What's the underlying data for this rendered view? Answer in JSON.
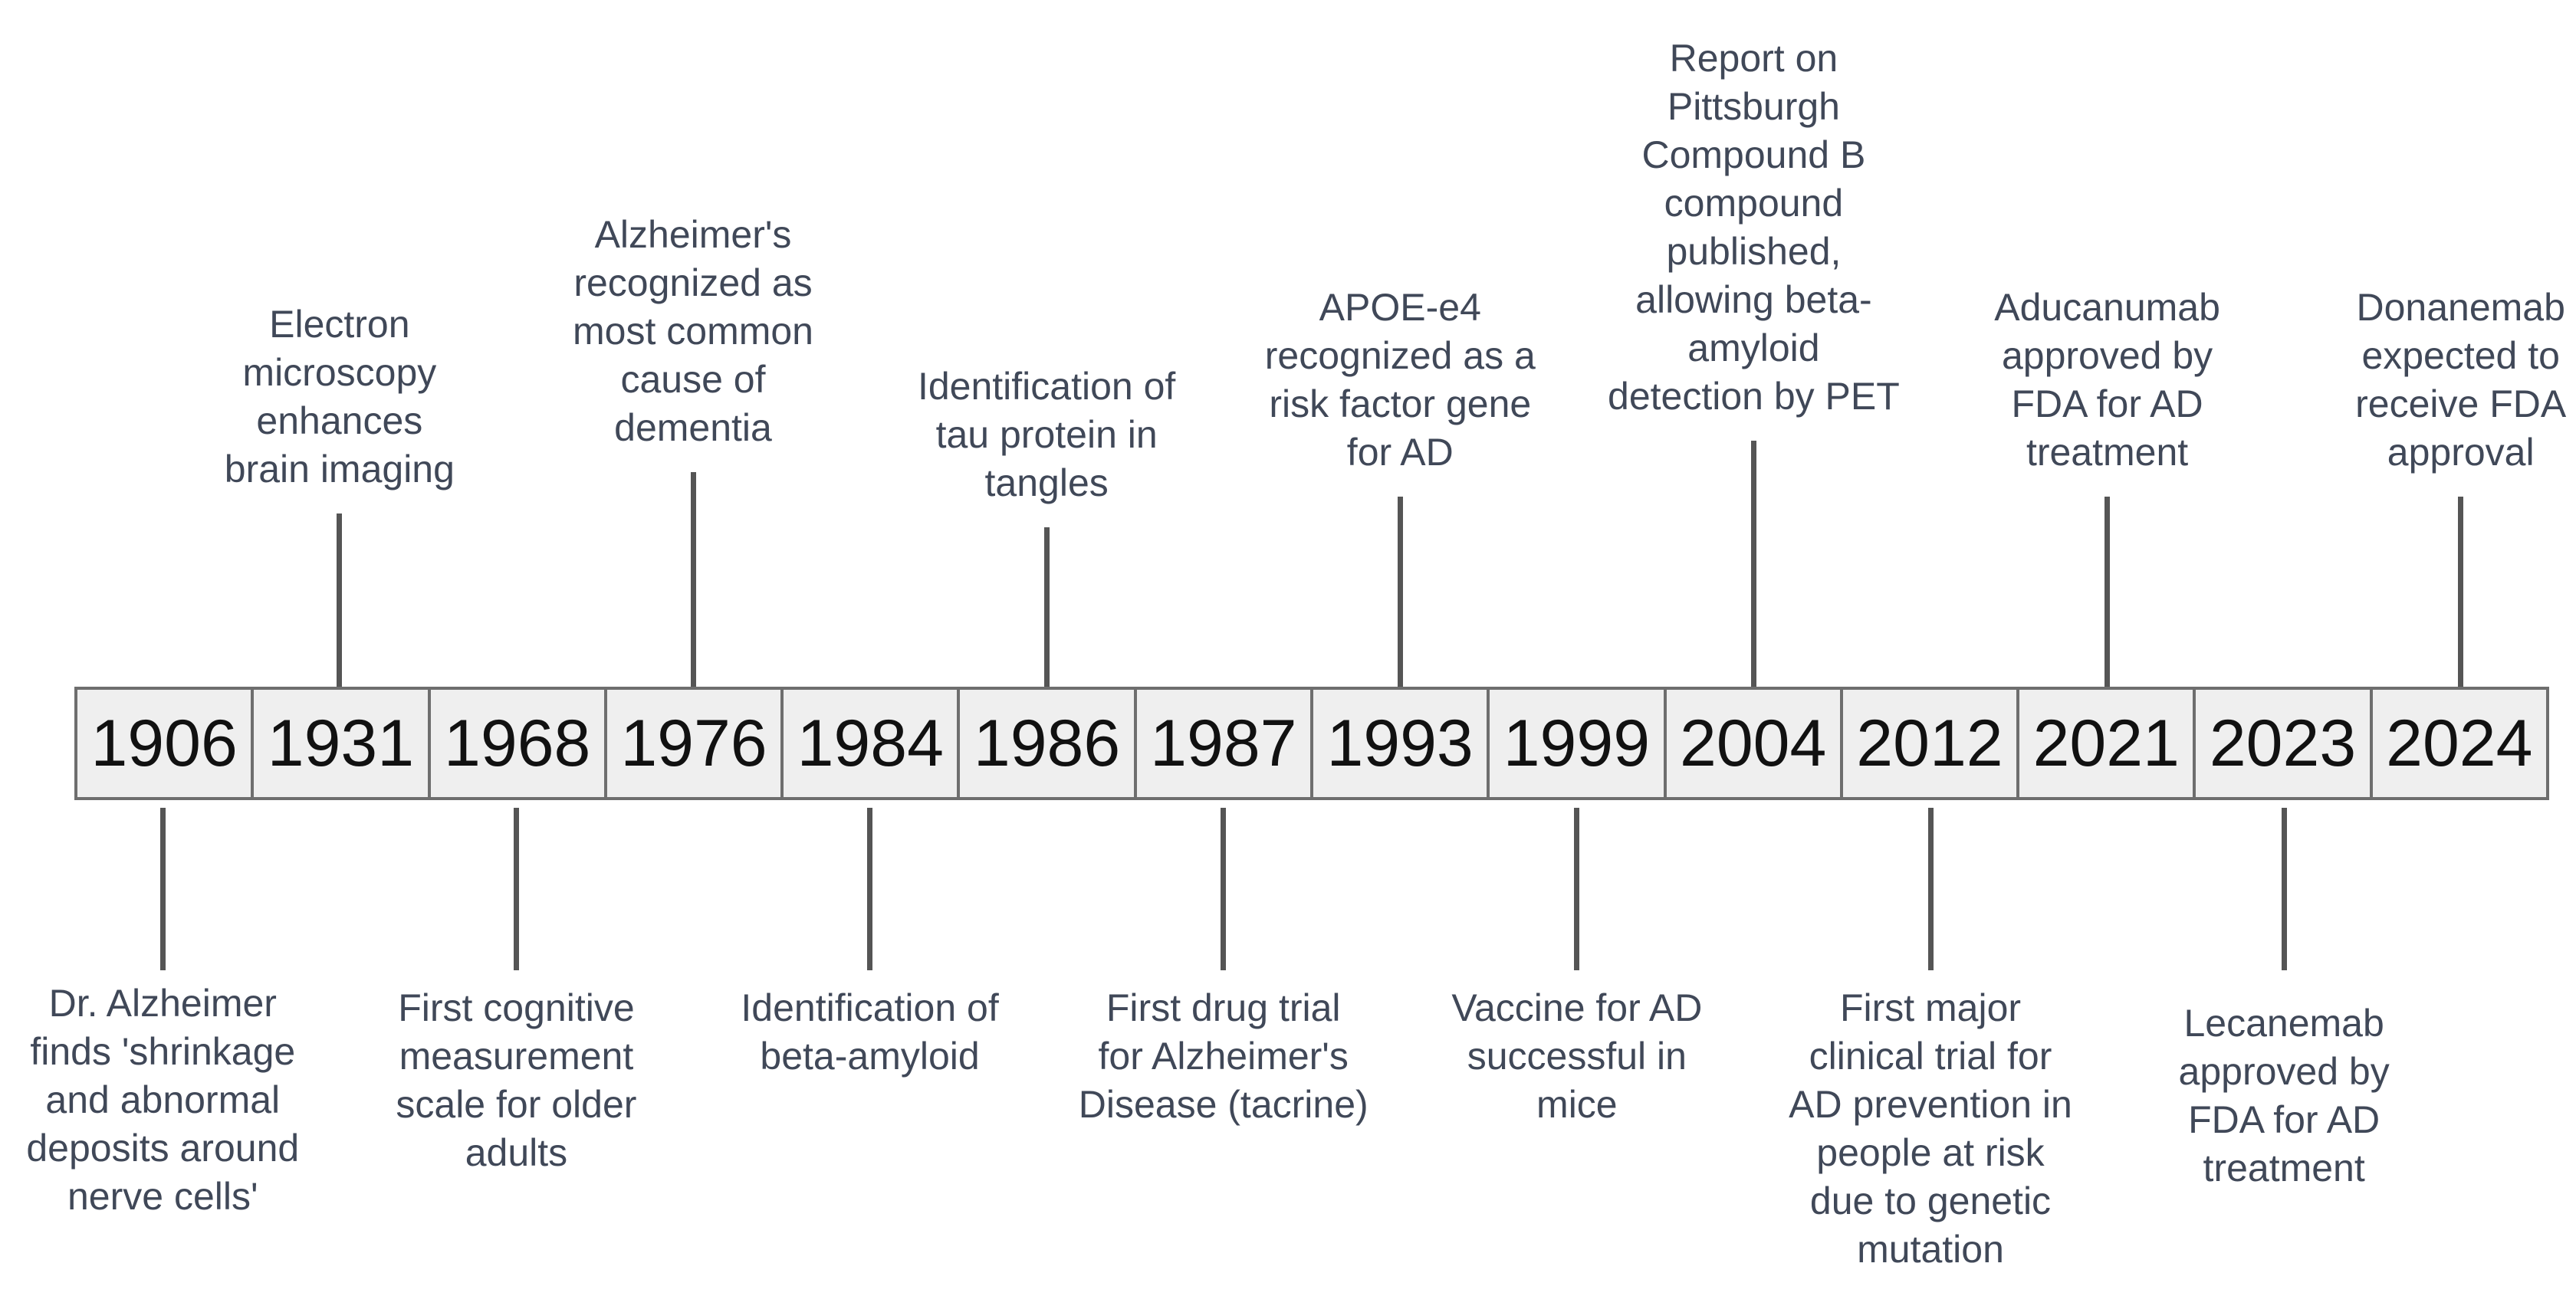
{
  "timeline": {
    "years": [
      "1906",
      "1931",
      "1968",
      "1976",
      "1984",
      "1986",
      "1987",
      "1993",
      "1999",
      "2004",
      "2012",
      "2021",
      "2023",
      "2024"
    ],
    "events_above": [
      {
        "year": "1931",
        "lines": [
          "Electron",
          "microscopy",
          "enhances",
          "brain imaging"
        ]
      },
      {
        "year": "1976",
        "lines": [
          "Alzheimer's",
          "recognized as",
          "most common",
          "cause of",
          "dementia"
        ]
      },
      {
        "year": "1986",
        "lines": [
          "Identification of",
          "tau protein in",
          "tangles"
        ]
      },
      {
        "year": "1993",
        "lines": [
          "APOE-e4",
          "recognized as a",
          "risk factor gene",
          "for AD"
        ]
      },
      {
        "year": "2004",
        "lines": [
          "Report on",
          "Pittsburgh",
          "Compound B",
          "compound",
          "published,",
          "allowing beta-",
          "amyloid",
          "detection by PET"
        ]
      },
      {
        "year": "2021",
        "lines": [
          "Aducanumab",
          "approved by",
          "FDA for AD",
          "treatment"
        ]
      },
      {
        "year": "2024",
        "lines": [
          "Donanemab",
          "expected to",
          "receive FDA",
          "approval"
        ]
      }
    ],
    "events_below": [
      {
        "year": "1906",
        "lines": [
          "Dr. Alzheimer",
          "finds 'shrinkage",
          "and abnormal",
          "deposits around",
          "nerve cells'"
        ]
      },
      {
        "year": "1968",
        "lines": [
          "First cognitive",
          "measurement",
          "scale for older",
          "adults"
        ]
      },
      {
        "year": "1984",
        "lines": [
          "Identification of",
          "beta-amyloid"
        ]
      },
      {
        "year": "1987",
        "lines": [
          "First drug trial",
          "for Alzheimer's",
          "Disease (tacrine)"
        ]
      },
      {
        "year": "1999",
        "lines": [
          "Vaccine for AD",
          "successful in",
          "mice"
        ]
      },
      {
        "year": "2012",
        "lines": [
          "First major",
          "clinical trial for",
          "AD prevention in",
          "people at risk",
          "due to genetic",
          "mutation"
        ]
      },
      {
        "year": "2023",
        "lines": [
          "Lecanemab",
          "approved by",
          "FDA for AD",
          "treatment"
        ]
      }
    ],
    "colors": {
      "bar_fill": "#efefef",
      "bar_border": "#6e6e6e",
      "year_text": "#111111",
      "connector": "#555555",
      "label_text": "#404858"
    }
  }
}
